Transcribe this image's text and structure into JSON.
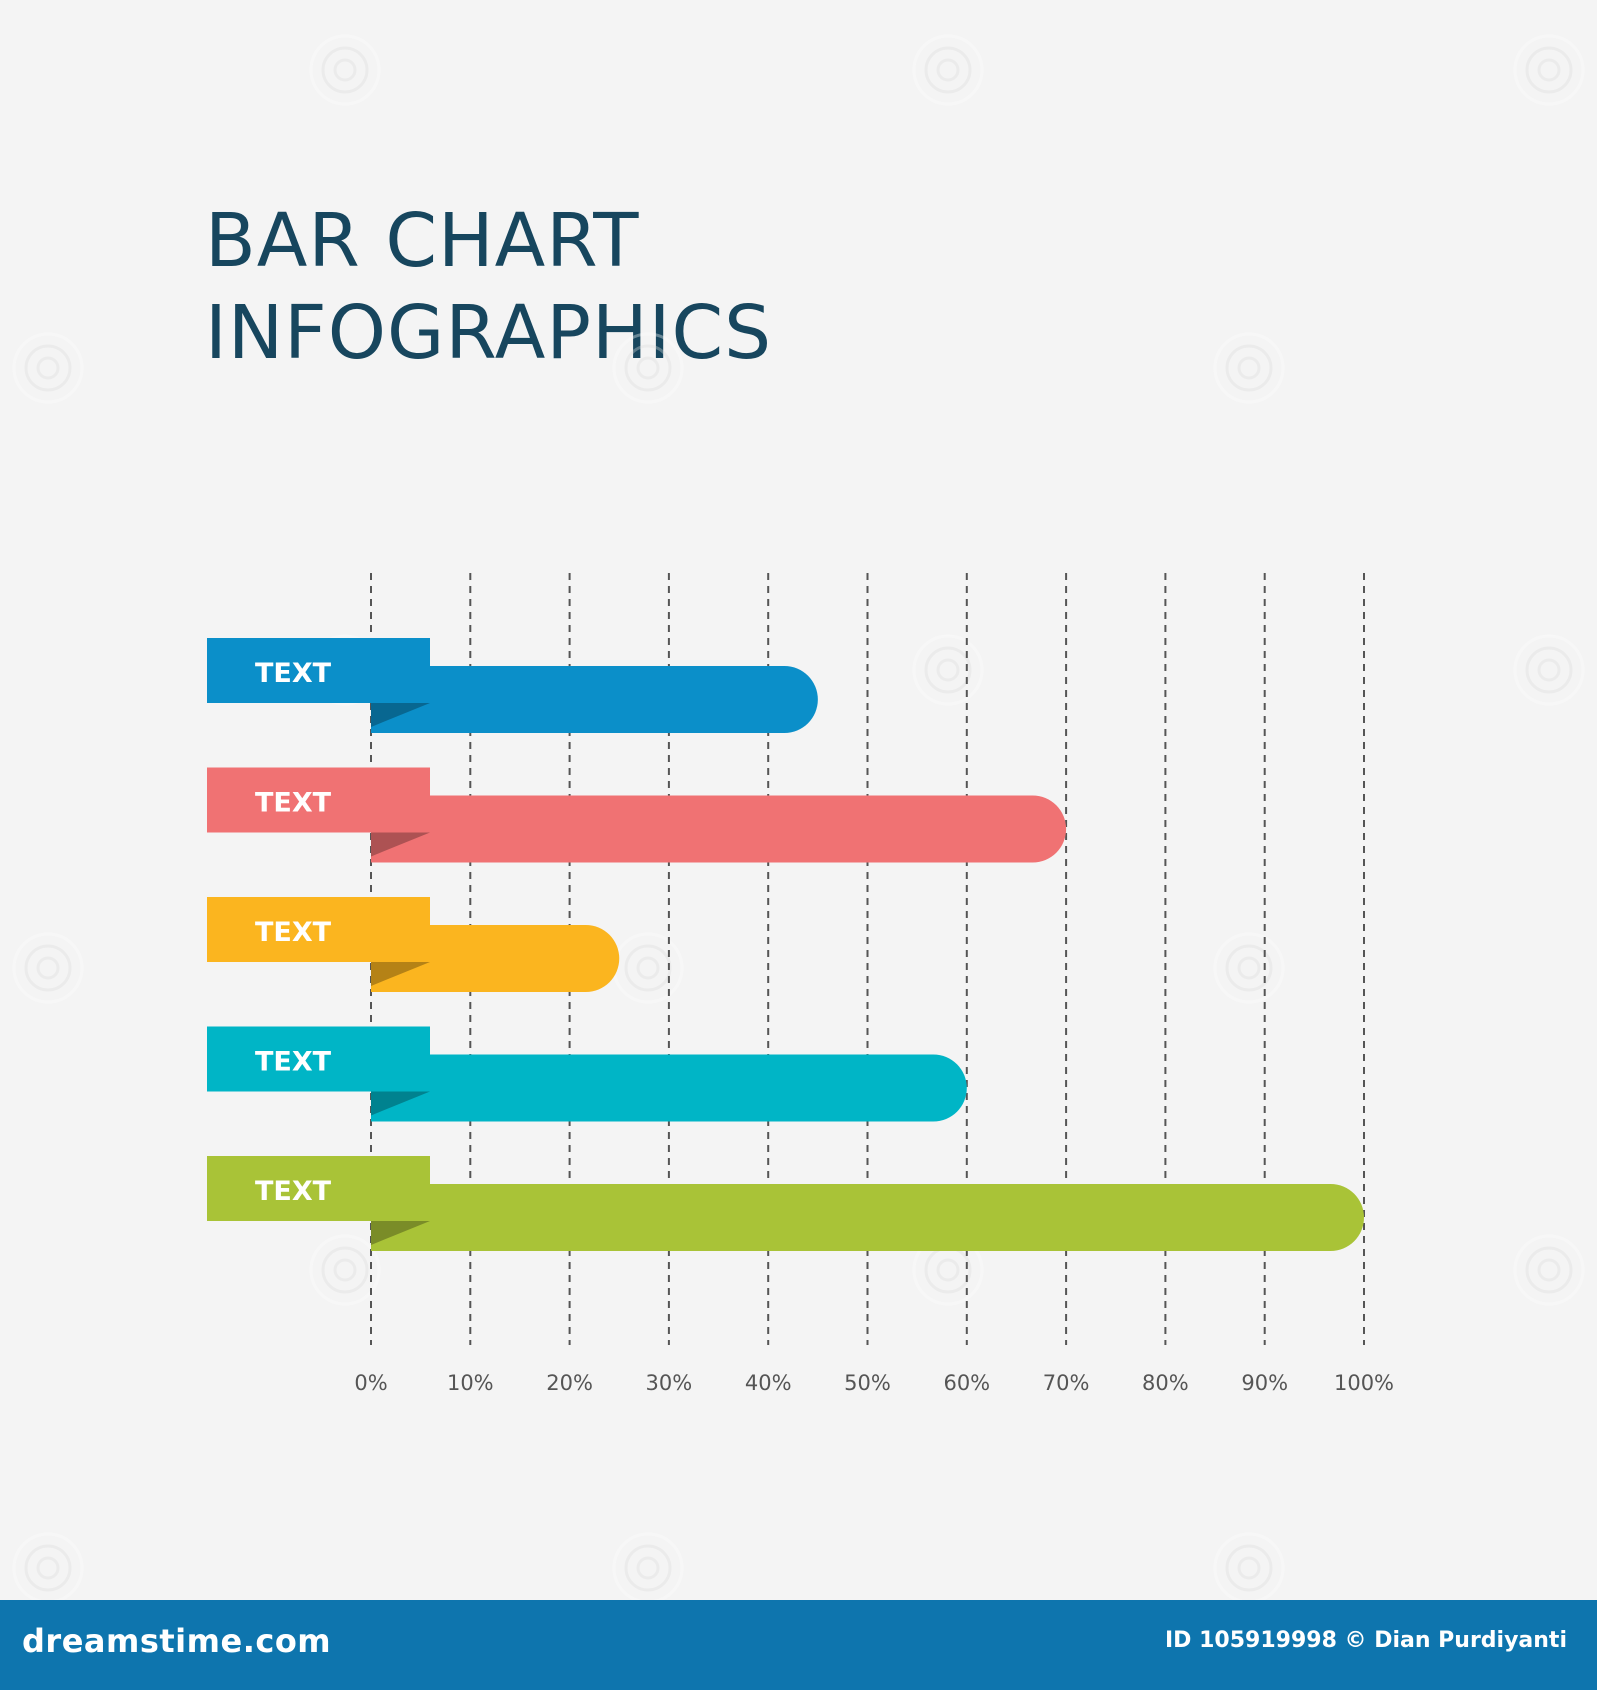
{
  "title": {
    "line1": "BAR CHART",
    "line2": "INFOGRAPHICS"
  },
  "chart_data": {
    "type": "bar",
    "orientation": "horizontal",
    "title": "BAR CHART INFOGRAPHICS",
    "categories": [
      "TEXT",
      "TEXT",
      "TEXT",
      "TEXT",
      "TEXT"
    ],
    "values": [
      45,
      70,
      25,
      60,
      100
    ],
    "colors": [
      "#0b8fc9",
      "#f07273",
      "#fbb51f",
      "#00b5c6",
      "#a9c337"
    ],
    "xlim": [
      0,
      100
    ],
    "x_ticks": [
      "0%",
      "10%",
      "20%",
      "30%",
      "40%",
      "50%",
      "60%",
      "70%",
      "80%",
      "90%",
      "100%"
    ],
    "grid": "vertical dashed",
    "xlabel": "",
    "ylabel": ""
  },
  "watermark": {
    "text": "dreamstime",
    "logo_text": "dreamstime.com",
    "credit": "ID 105919998 © Dian Purdiyanti"
  }
}
